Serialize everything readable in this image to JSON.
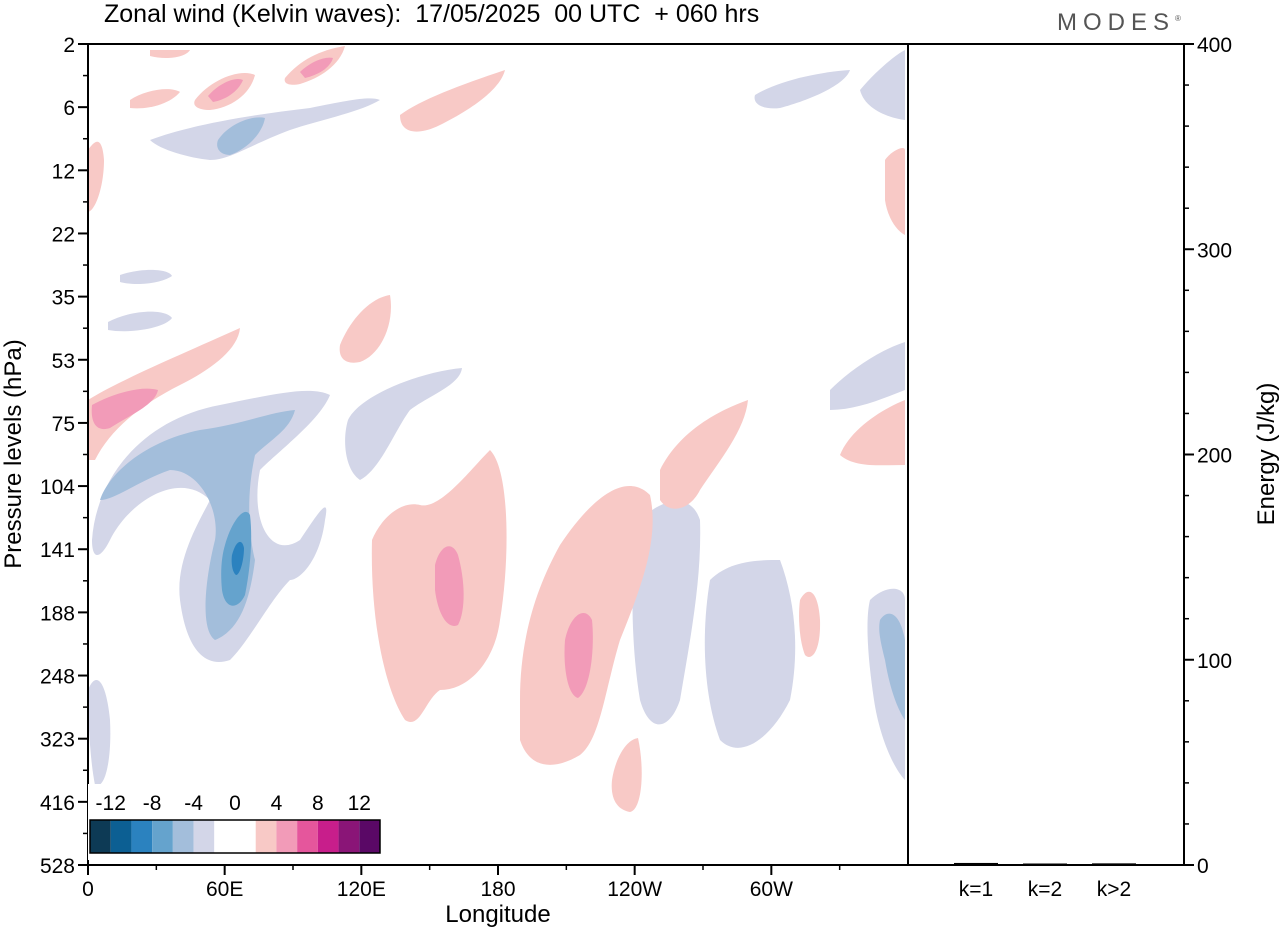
{
  "title": "Zonal wind (Kelvin waves):  17/05/2025  00 UTC  + 060 hrs",
  "brand": "MODES",
  "chart_data": [
    {
      "type": "heatmap",
      "title": "Zonal wind (Kelvin waves):  17/05/2025  00 UTC  + 060 hrs",
      "xlabel": "Longitude",
      "ylabel": "Pressure levels (hPa)",
      "x_ticks": [
        "0",
        "60E",
        "120E",
        "180",
        "120W",
        "60W"
      ],
      "y_ticks": [
        "2",
        "6",
        "12",
        "22",
        "35",
        "53",
        "75",
        "104",
        "141",
        "188",
        "248",
        "323",
        "416",
        "528"
      ],
      "xlim": [
        0,
        360
      ],
      "colorbar": {
        "labels": [
          "-12",
          "-8",
          "-4",
          "0",
          "4",
          "8",
          "12"
        ],
        "levels": [
          -14,
          -12,
          -10,
          -8,
          -6,
          -4,
          -2,
          0,
          2,
          4,
          6,
          8,
          10,
          12,
          14
        ],
        "colors": [
          "#0d3a55",
          "#0c5f93",
          "#2b82bf",
          "#65a3cd",
          "#a3bedb",
          "#d3d6e8",
          "#ffffff",
          "#ffffff",
          "#f8c9c6",
          "#f29bb8",
          "#e5569c",
          "#c81e8b",
          "#8a1577",
          "#5a0866"
        ]
      },
      "features": [
        {
          "sign": "positive",
          "level": 4,
          "lon": 16,
          "level_index": 6.6,
          "note": "pink band near 75 hPa"
        },
        {
          "sign": "negative",
          "level": -8,
          "lon": 64,
          "level_index": 8.5,
          "note": "blue core near 141 hPa"
        },
        {
          "sign": "positive",
          "level": 6,
          "lon": 155,
          "level_index": 9.2,
          "note": "pink core near 188 hPa"
        },
        {
          "sign": "positive",
          "level": 6,
          "lon": 215,
          "level_index": 10.0,
          "note": "pink core near 248 hPa"
        }
      ]
    },
    {
      "type": "bar",
      "categories": [
        "k=1",
        "k=2",
        "k>2"
      ],
      "values": [
        1,
        0.4,
        0.8
      ],
      "ylabel": "Energy (J/kg)",
      "ylim": [
        0,
        400
      ],
      "y_ticks": [
        "0",
        "100",
        "200",
        "300",
        "400"
      ]
    }
  ]
}
